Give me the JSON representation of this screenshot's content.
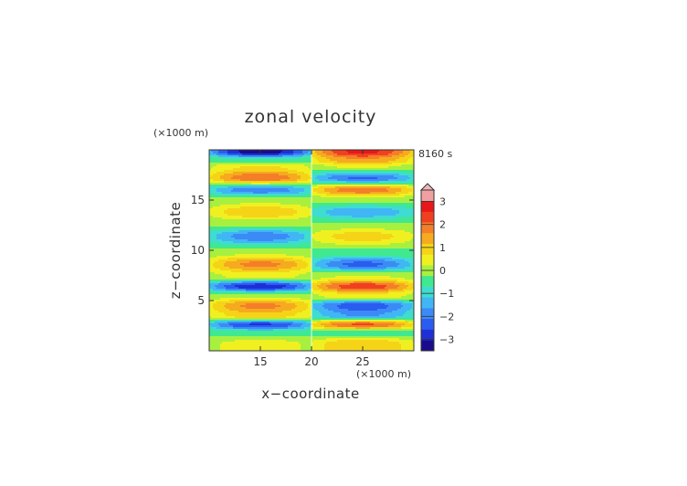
{
  "chart_data": {
    "type": "heatmap",
    "title": "zonal velocity",
    "xlabel": "x−coordinate",
    "ylabel": "z−coordinate",
    "x_unit": "(×1000 m)",
    "y_unit": "(×1000 m)",
    "time_label": "8160 s",
    "xlim": [
      10,
      30
    ],
    "ylim": [
      0,
      20
    ],
    "x_ticks": [
      15,
      20,
      25
    ],
    "y_ticks": [
      5,
      10,
      15
    ],
    "x_tick_labels": [
      "15",
      "20",
      "25"
    ],
    "y_tick_labels": [
      "5",
      "10",
      "15"
    ],
    "colorbar": {
      "min": -3.5,
      "max": 3.5,
      "step": 0.5,
      "tick_values": [
        -3,
        -2,
        -1,
        0,
        1,
        2,
        3
      ],
      "tick_labels": [
        "−3",
        "−2",
        "−1",
        "0",
        "1",
        "2",
        "3"
      ],
      "extend": "max",
      "colors": [
        "#1a0b8c",
        "#1f2fd8",
        "#2a5cf0",
        "#3c8af5",
        "#40b6f5",
        "#3fdcd0",
        "#40e890",
        "#a8f040",
        "#f0f020",
        "#f5d418",
        "#f5aa20",
        "#f57e28",
        "#f04020",
        "#e81818",
        "#f0a0a0"
      ],
      "values_note": "band colors from lowest (<-3) to highest (>3)"
    },
    "field": {
      "z_bands": [
        {
          "z": 0.7,
          "left": 0.8,
          "right": 1.5
        },
        {
          "z": 1.8,
          "left": -0.4,
          "right": -0.4
        },
        {
          "z": 2.6,
          "left": -2.6,
          "right": 2.6
        },
        {
          "z": 3.5,
          "left": 1.4,
          "right": -1.6
        },
        {
          "z": 4.5,
          "left": 2.2,
          "right": -2.4
        },
        {
          "z": 5.5,
          "left": 0.4,
          "right": 0.9
        },
        {
          "z": 6.4,
          "left": -3.0,
          "right": 2.9
        },
        {
          "z": 7.4,
          "left": 0.7,
          "right": 0.6
        },
        {
          "z": 8.6,
          "left": 2.2,
          "right": -2.2
        },
        {
          "z": 9.8,
          "left": 0.4,
          "right": -0.2
        },
        {
          "z": 11.4,
          "left": -1.9,
          "right": 1.3
        },
        {
          "z": 12.6,
          "left": 0.1,
          "right": 0.1
        },
        {
          "z": 13.8,
          "left": 1.5,
          "right": -1.5
        },
        {
          "z": 15.0,
          "left": 0.3,
          "right": 0.2
        },
        {
          "z": 16.0,
          "left": -1.9,
          "right": 2.4
        },
        {
          "z": 17.2,
          "left": 2.5,
          "right": -2.1
        },
        {
          "z": 18.3,
          "left": 1.1,
          "right": 0.6
        },
        {
          "z": 19.0,
          "left": -0.4,
          "right": 2.0
        },
        {
          "z": 19.8,
          "left": -3.4,
          "right": 3.2
        }
      ]
    }
  }
}
